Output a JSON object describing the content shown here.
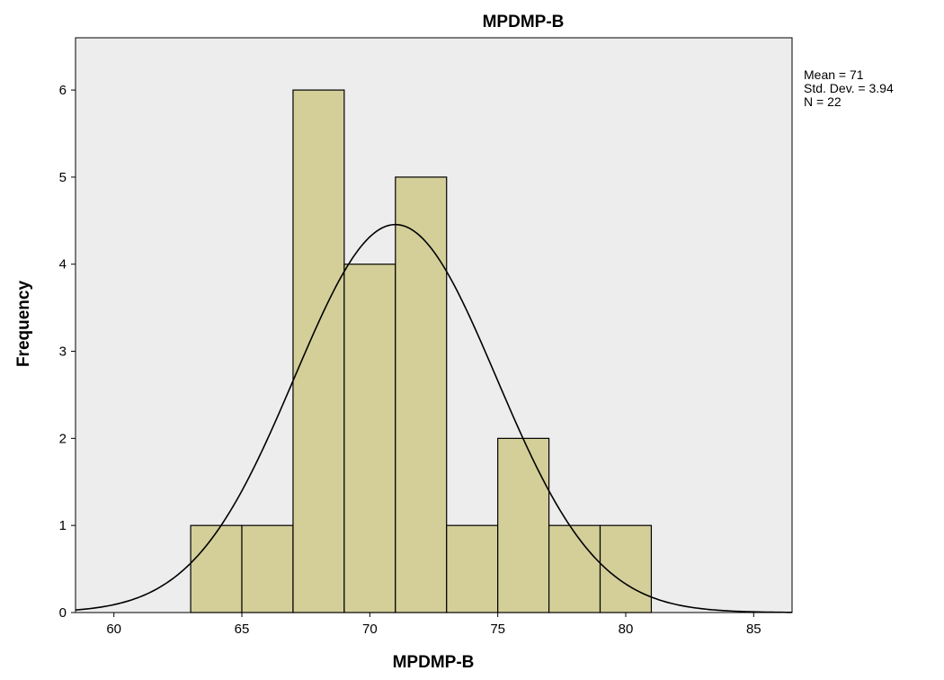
{
  "chart_data": {
    "type": "bar",
    "title": "MPDMP-B",
    "xlabel": "MPDMP-B",
    "ylabel": "Frequency",
    "bins": [
      {
        "start": 63,
        "end": 65,
        "count": 1
      },
      {
        "start": 65,
        "end": 67,
        "count": 1
      },
      {
        "start": 67,
        "end": 69,
        "count": 6
      },
      {
        "start": 69,
        "end": 71,
        "count": 4
      },
      {
        "start": 71,
        "end": 73,
        "count": 5
      },
      {
        "start": 73,
        "end": 75,
        "count": 1
      },
      {
        "start": 75,
        "end": 77,
        "count": 2
      },
      {
        "start": 77,
        "end": 79,
        "count": 1
      },
      {
        "start": 79,
        "end": 81,
        "count": 1
      }
    ],
    "xlim": [
      58.5,
      86.5
    ],
    "ylim": [
      0,
      6.6
    ],
    "xticks": [
      60,
      65,
      70,
      75,
      80,
      85
    ],
    "yticks": [
      0,
      1,
      2,
      3,
      4,
      5,
      6
    ],
    "normal_curve": {
      "mean": 71,
      "std": 3.94,
      "n": 22,
      "bin_width": 2
    },
    "stats": [
      "Mean = 71",
      "Std. Dev. = 3.94",
      "N = 22"
    ],
    "colors": {
      "plot_bg": "#ededed",
      "bar_fill": "#d4cf99",
      "bar_stroke": "#000000",
      "curve": "#000000"
    },
    "grid": false,
    "legend": "none"
  }
}
